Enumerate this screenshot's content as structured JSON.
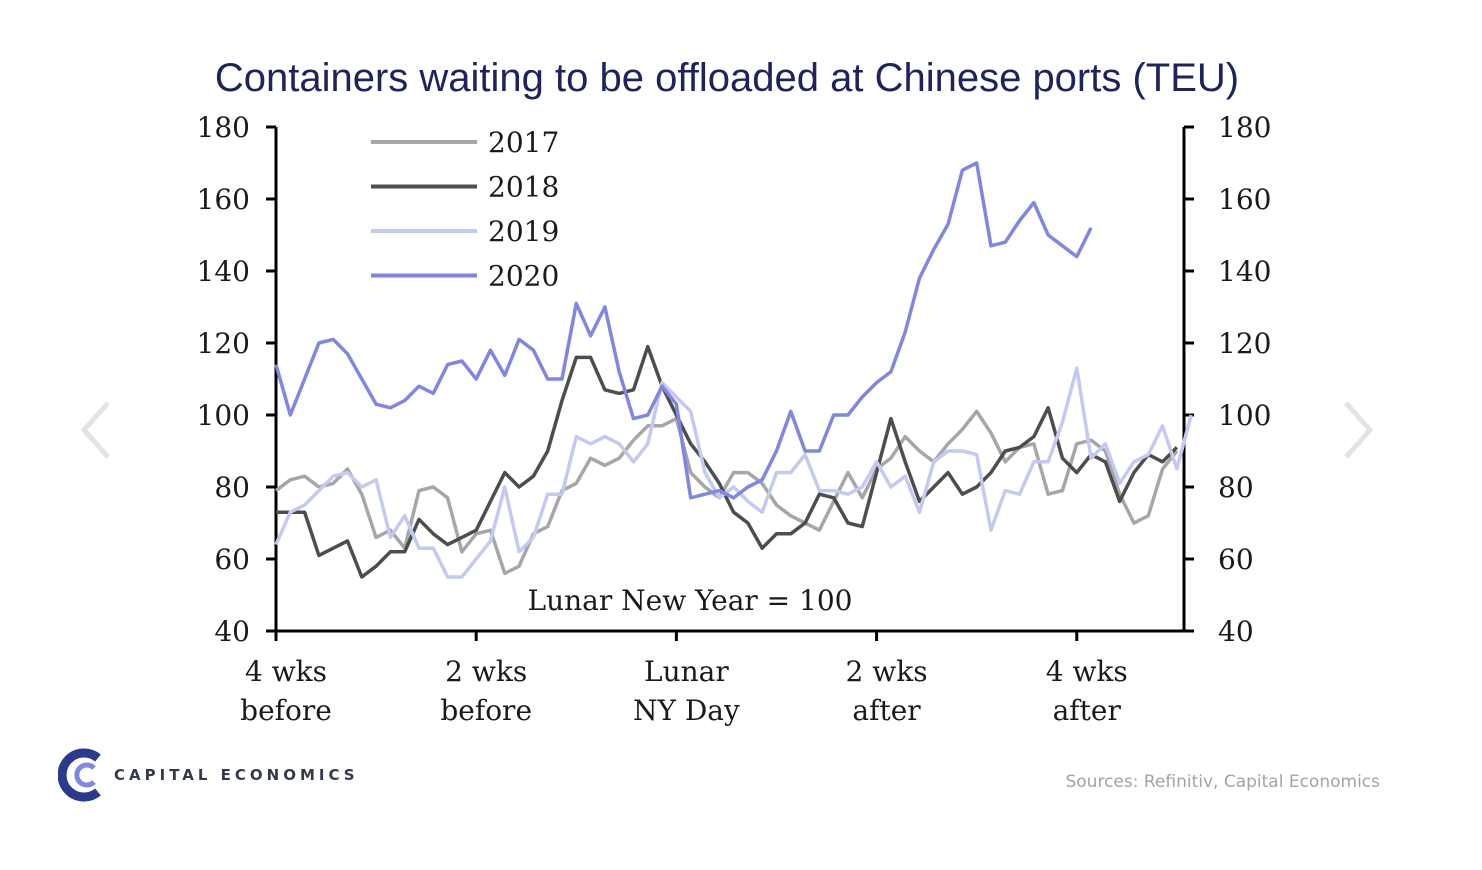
{
  "chart_data": {
    "type": "line",
    "title": "Containers waiting to be offloaded at Chinese ports (TEU)",
    "annotation": "Lunar New Year = 100",
    "ylim": [
      40,
      180
    ],
    "y_ticks": [
      "40",
      "60",
      "80",
      "100",
      "120",
      "140",
      "160",
      "180"
    ],
    "x_ticks": [
      {
        "line1": "4 wks",
        "line2": "before",
        "pos": -28
      },
      {
        "line1": "2 wks",
        "line2": "before",
        "pos": -14
      },
      {
        "line1": "Lunar",
        "line2": "NY Day",
        "pos": 0
      },
      {
        "line1": "2 wks",
        "line2": "after",
        "pos": 14
      },
      {
        "line1": "4 wks",
        "line2": "after",
        "pos": 28
      }
    ],
    "x_start": -28,
    "x_end": 35.5,
    "legend_position": "top-left",
    "series": [
      {
        "name": "2017",
        "color": "#a6a6a6",
        "values": [
          79,
          82,
          83,
          80,
          81,
          85,
          78,
          66,
          68,
          63,
          79,
          80,
          77,
          62,
          67,
          68,
          56,
          58,
          67,
          69,
          79,
          81,
          88,
          86,
          88,
          93,
          97,
          97,
          99,
          84,
          80,
          77,
          84,
          84,
          81,
          75,
          72,
          70,
          68,
          76,
          84,
          77,
          85,
          88,
          94,
          90,
          87,
          92,
          96,
          101,
          95,
          87,
          91,
          92,
          78,
          79,
          92,
          93,
          90,
          78,
          70,
          72,
          85,
          90
        ]
      },
      {
        "name": "2018",
        "color": "#4d4d4d",
        "values": [
          73,
          73,
          73,
          61,
          63,
          65,
          55,
          58,
          62,
          62,
          71,
          67,
          64,
          66,
          68,
          76,
          84,
          80,
          83,
          90,
          104,
          116,
          116,
          107,
          106,
          107,
          119,
          108,
          100,
          92,
          87,
          81,
          73,
          70,
          63,
          67,
          67,
          70,
          78,
          77,
          70,
          69,
          84,
          99,
          87,
          76,
          80,
          84,
          78,
          80,
          84,
          90,
          91,
          94,
          102,
          88,
          84,
          89,
          87,
          76,
          84,
          89,
          87,
          91
        ]
      },
      {
        "name": "2019",
        "color": "#c3c9f2",
        "values": [
          64,
          73,
          75,
          79,
          83,
          84,
          80,
          82,
          66,
          72,
          63,
          63,
          55,
          55,
          60,
          65,
          80,
          62,
          66,
          78,
          78,
          94,
          92,
          94,
          92,
          87,
          92,
          109,
          105,
          101,
          84,
          77,
          80,
          76,
          73,
          84,
          84,
          89,
          79,
          79,
          78,
          80,
          87,
          80,
          83,
          73,
          87,
          90,
          90,
          89,
          68,
          79,
          78,
          87,
          87,
          98,
          113,
          88,
          92,
          81,
          87,
          89,
          97,
          85,
          100
        ]
      },
      {
        "name": "2020",
        "color": "#7f86e3",
        "values": [
          114,
          100,
          110,
          120,
          121,
          117,
          110,
          103,
          102,
          104,
          108,
          106,
          114,
          115,
          110,
          118,
          111,
          121,
          118,
          110,
          110,
          131,
          122,
          130,
          112,
          99,
          100,
          108,
          103,
          77,
          78,
          79,
          77,
          80,
          82,
          90,
          101,
          90,
          90,
          100,
          100,
          105,
          109,
          112,
          123,
          138,
          146,
          153,
          168,
          170,
          147,
          148,
          154,
          159,
          150,
          147,
          144,
          152
        ]
      }
    ]
  },
  "brand": {
    "name": "CAPITAL ECONOMICS"
  },
  "sources": "Sources: Refinitiv, Capital Economics",
  "nav": {
    "prev_icon": "chevron-left-icon",
    "next_icon": "chevron-right-icon"
  }
}
